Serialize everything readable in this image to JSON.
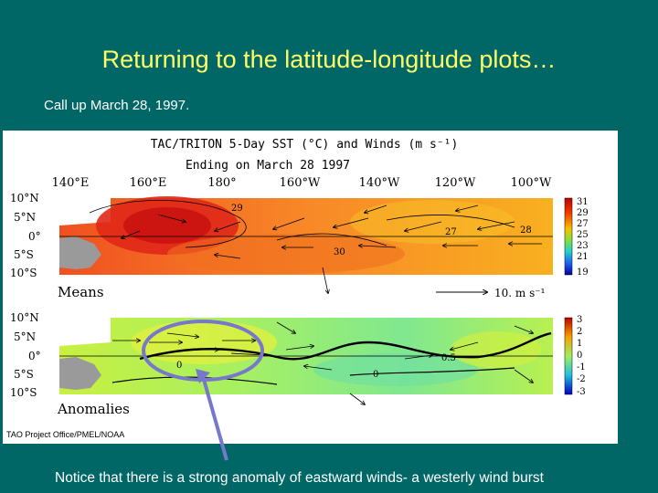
{
  "slide": {
    "title": "Returning to the latitude-longitude plots…",
    "subtitle": "Call up March 28, 1997.",
    "footer_note": "Notice that there is a strong anomaly of eastward winds- a westerly wind burst"
  },
  "figure": {
    "title_line1": "TAC/TRITON 5-Day SST (°C) and Winds (m s⁻¹)",
    "title_line2": "Ending on March 28 1997",
    "longitudes": [
      "140°E",
      "160°E",
      "180°",
      "160°W",
      "140°W",
      "120°W",
      "100°W"
    ],
    "latitudes": [
      "10°N",
      "5°N",
      "0°",
      "5°S",
      "10°S"
    ],
    "means_label": "Means",
    "anomalies_label": "Anomalies",
    "scale_label": "10.  m s⁻¹",
    "credit": "TAO Project Office/PMEL/NOAA",
    "means_contours": [
      "29",
      "30",
      "27",
      "28"
    ],
    "means_colorbar_ticks": [
      "31",
      "29",
      "27",
      "25",
      "23",
      "21",
      "19"
    ],
    "anomaly_contours": [
      "0",
      "0.5",
      "0"
    ],
    "anomaly_colorbar_ticks": [
      "3",
      "2",
      "1",
      "0",
      "-1",
      "-2",
      "-3"
    ],
    "colors": {
      "background": "#006666",
      "title": "#ffff66",
      "highlight": "#7777cc",
      "means_warm": "#e03020",
      "anomaly_base": "#a0f060"
    }
  }
}
